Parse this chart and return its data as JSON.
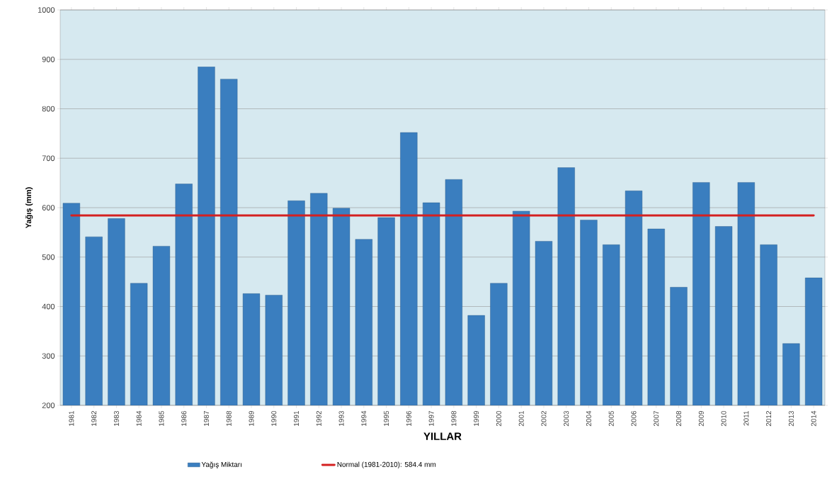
{
  "chart_data": {
    "type": "bar",
    "xlabel": "YILLAR",
    "ylabel": "Yağış (mm)",
    "categories": [
      "1981",
      "1982",
      "1983",
      "1984",
      "1985",
      "1986",
      "1987",
      "1988",
      "1989",
      "1990",
      "1991",
      "1992",
      "1993",
      "1994",
      "1995",
      "1996",
      "1997",
      "1998",
      "1999",
      "2000",
      "2001",
      "2002",
      "2003",
      "2004",
      "2005",
      "2006",
      "2007",
      "2008",
      "2009",
      "2010",
      "2011",
      "2012",
      "2013",
      "2014"
    ],
    "series": [
      {
        "name": "Yağış Miktarı",
        "color": "#3a7ebf",
        "values": [
          609,
          541,
          578,
          447,
          522,
          648,
          885,
          860,
          426,
          423,
          614,
          629,
          599,
          536,
          580,
          752,
          610,
          657,
          382,
          447,
          593,
          532,
          681,
          575,
          525,
          634,
          557,
          439,
          651,
          562,
          651,
          525,
          325,
          458
        ]
      }
    ],
    "ref_lines": [
      {
        "axis": "y",
        "value": 584.4,
        "label": "Normal (1981-2010): 584.4 mm",
        "color": "#d42020"
      }
    ],
    "ylim": [
      200,
      1000
    ],
    "yticks": [
      200,
      300,
      400,
      500,
      600,
      700,
      800,
      900,
      1000
    ],
    "grid": "y",
    "legend": "bottom"
  }
}
